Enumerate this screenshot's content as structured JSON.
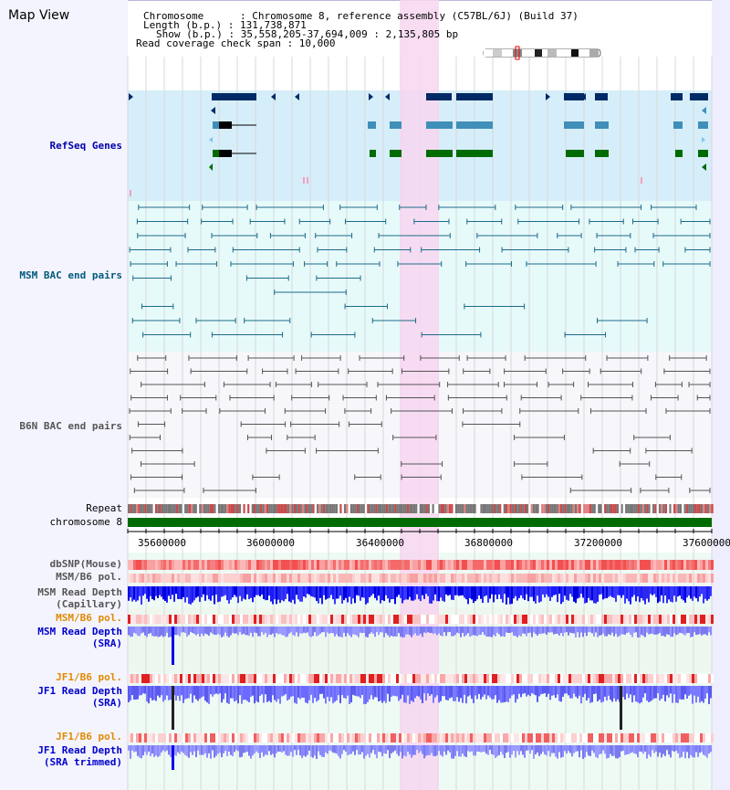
{
  "window": {
    "title": "Map View"
  },
  "info": {
    "chromosome": "Chromosome      : Chromosome 8, reference assembly (C57BL/6J) (Build 37)",
    "length": "Length (b.p.) : 131,738,871",
    "show": "Show (b.p.) : 35,558,205-37,694,009 : 2,135,805 bp",
    "coverage": "Read coverage check span : 10,000"
  },
  "tracks": {
    "refseq": "RefSeq Genes",
    "msm_bac": "MSM BAC end pairs",
    "b6n_bac": "B6N BAC end pairs",
    "repeat": "Repeat",
    "chromosome": "chromosome 8",
    "dbsnp": "dbSNP(Mouse)",
    "msm_b6_pol_1": "MSM/B6 pol.",
    "msm_rd_cap_1": "MSM Read Depth",
    "msm_rd_cap_2": "(Capillary)",
    "msm_b6_pol_2": "MSM/B6 pol.",
    "msm_rd_sra_1": "MSM Read Depth",
    "msm_rd_sra_2": "(SRA)",
    "jf1_b6_pol_1": "JF1/B6 pol.",
    "jf1_rd_sra_1": "JF1 Read Depth",
    "jf1_rd_sra_2": "(SRA)",
    "jf1_b6_pol_2": "JF1/B6 pol.",
    "jf1_rd_trim_1": "JF1 Read Depth",
    "jf1_rd_trim_2": "(SRA trimmed)"
  },
  "axis": {
    "ticks": [
      "35600000",
      "36000000",
      "36400000",
      "36800000",
      "37200000",
      "37600000"
    ]
  },
  "colors": {
    "refseq_bg": "#d6eefa",
    "msm_bg": "#e6fafa",
    "highlight": "#f7d6f0",
    "gene_dark": "#002a66",
    "gene_mid": "#3f8fb8",
    "gene_green": "#006b00",
    "bac_msm": "#1e6a8a",
    "bac_b6n": "#555555"
  }
}
